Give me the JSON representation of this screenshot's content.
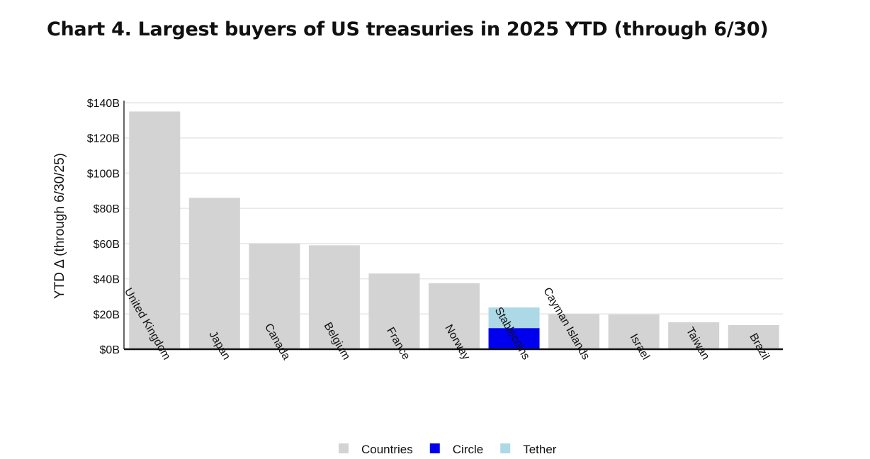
{
  "title": "Chart 4. Largest buyers of US treasuries in 2025 YTD (through 6/30)",
  "chart_data": {
    "type": "bar",
    "stacked": true,
    "title": "Chart 4. Largest buyers of US treasuries in 2025 YTD (through 6/30)",
    "xlabel": "",
    "ylabel": "YTD Δ (through 6/30/25)",
    "ylim": [
      0,
      140
    ],
    "yticks": [
      0,
      20,
      40,
      60,
      80,
      100,
      120,
      140
    ],
    "ytick_labels": [
      "$0B",
      "$20B",
      "$40B",
      "$60B",
      "$80B",
      "$100B",
      "$120B",
      "$140B"
    ],
    "grid": true,
    "legend_position": "bottom",
    "categories": [
      "United Kingdom",
      "Japan",
      "Canada",
      "Belgium",
      "France",
      "Norway",
      "Stablecoins",
      "Cayman Islands",
      "Israel",
      "Taiwan",
      "Brazil"
    ],
    "series": [
      {
        "name": "Countries",
        "color": "#d3d3d3",
        "values": [
          135,
          86,
          60,
          59,
          43,
          37.5,
          0,
          20,
          19.7,
          15.3,
          13.7
        ]
      },
      {
        "name": "Circle",
        "color": "#0000ee",
        "values": [
          0,
          0,
          0,
          0,
          0,
          0,
          12,
          0,
          0,
          0,
          0
        ]
      },
      {
        "name": "Tether",
        "color": "#add8e6",
        "values": [
          0,
          0,
          0,
          0,
          0,
          0,
          11.7,
          0,
          0,
          0,
          0
        ]
      }
    ]
  }
}
